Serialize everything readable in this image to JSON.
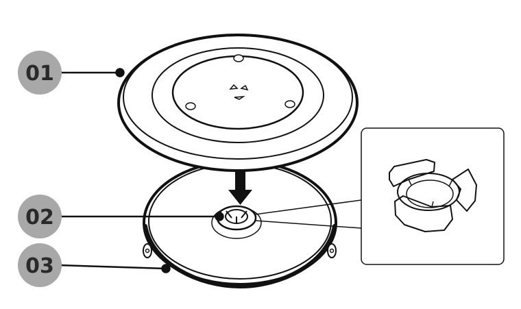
{
  "callouts": [
    {
      "label": "01",
      "part": "turntable-glass-tray"
    },
    {
      "label": "02",
      "part": "coupler"
    },
    {
      "label": "03",
      "part": "roller-ring"
    }
  ],
  "colors": {
    "callout_badge": "#a8a8a8",
    "callout_text": "#2a2a2a",
    "line": "#111111",
    "background": "#ffffff"
  },
  "icons": {
    "arrow": "down-arrow-icon",
    "detail": "coupler-detail-inset"
  }
}
